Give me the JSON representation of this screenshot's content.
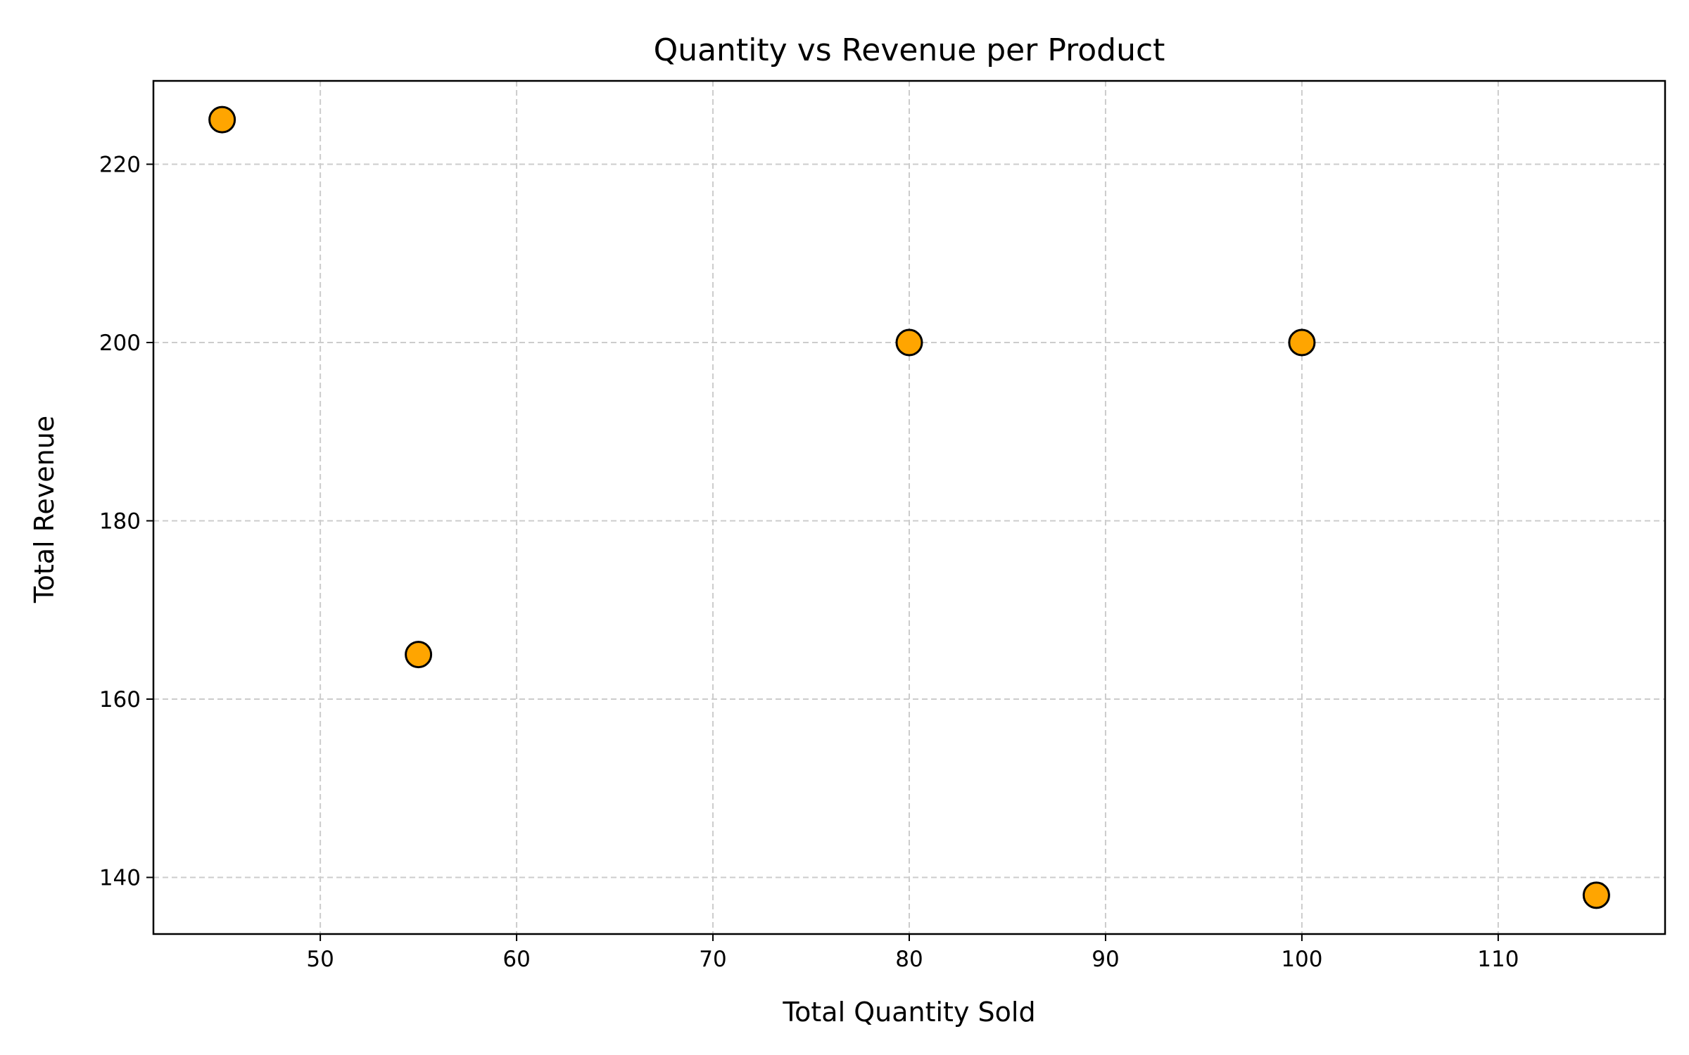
{
  "chart_data": {
    "type": "scatter",
    "title": "Quantity vs Revenue per Product",
    "xlabel": "Total Quantity Sold",
    "ylabel": "Total Revenue",
    "points": [
      {
        "x": 45,
        "y": 225
      },
      {
        "x": 55,
        "y": 165
      },
      {
        "x": 80,
        "y": 200
      },
      {
        "x": 100,
        "y": 200
      },
      {
        "x": 115,
        "y": 138
      }
    ],
    "xlim": [
      41.5,
      118.5
    ],
    "ylim": [
      133.65,
      229.35
    ],
    "xticks": [
      50,
      60,
      70,
      80,
      90,
      100,
      110
    ],
    "yticks": [
      140,
      160,
      180,
      200,
      220
    ],
    "grid": true,
    "grid_style": "dashed",
    "marker_color": "#FFA500",
    "marker_edge_color": "#000000"
  }
}
